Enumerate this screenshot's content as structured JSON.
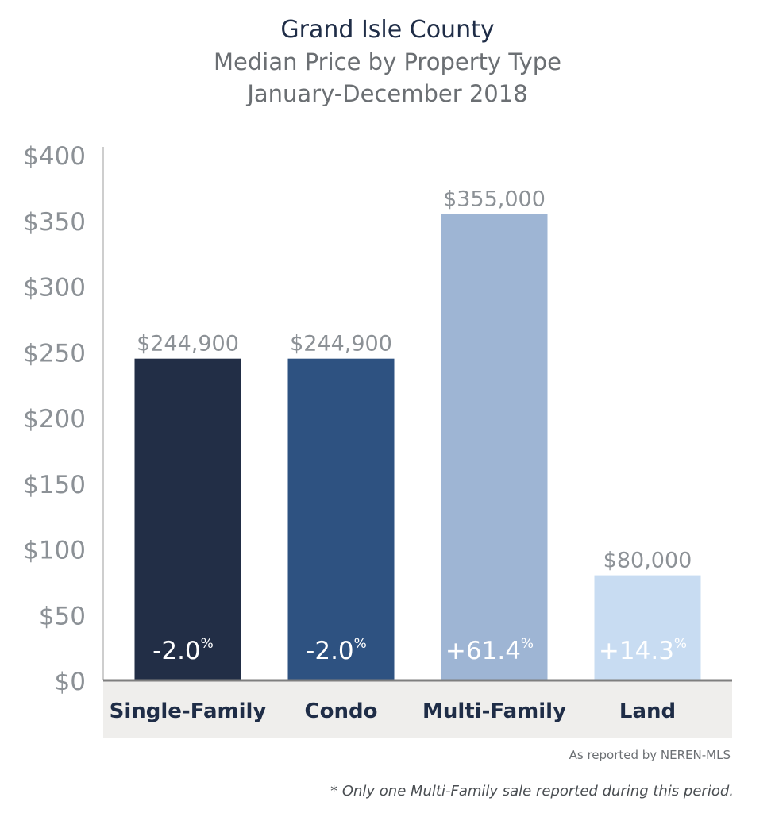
{
  "header": {
    "title": "Grand Isle County",
    "subtitle": "Median Price by Property Type",
    "period": "January-December 2018"
  },
  "notes": {
    "source": "As reported by NEREN-MLS",
    "footnote": "* Only one Multi-Family sale reported during this period."
  },
  "chart_data": {
    "type": "bar",
    "categories": [
      "Single-Family",
      "Condo",
      "Multi-Family",
      "Land"
    ],
    "values": [
      244900,
      244900,
      355000,
      80000
    ],
    "value_labels": [
      "$244,900",
      "$244,900",
      "$355,000",
      "$80,000"
    ],
    "change_labels": [
      "-2.0",
      "-2.0",
      "+61.4",
      "+14.3"
    ],
    "change_unit": "%",
    "bar_colors": [
      "#222e46",
      "#2e5281",
      "#9eb5d4",
      "#c8dcf2"
    ],
    "change_text_colors": [
      "#ffffff",
      "#ffffff",
      "#ffffff",
      "#ffffff"
    ],
    "yticks": [
      0,
      50,
      100,
      150,
      200,
      250,
      300,
      350,
      400
    ],
    "ytick_labels": [
      "$0",
      "$50",
      "$100",
      "$150",
      "$200",
      "$250",
      "$300",
      "$350",
      "$400"
    ],
    "ylim": [
      0,
      400
    ],
    "y_unit_multiplier": 1000,
    "grid": false,
    "category_band_color": "#efeeec",
    "axis_color": "#7f7f7f"
  }
}
